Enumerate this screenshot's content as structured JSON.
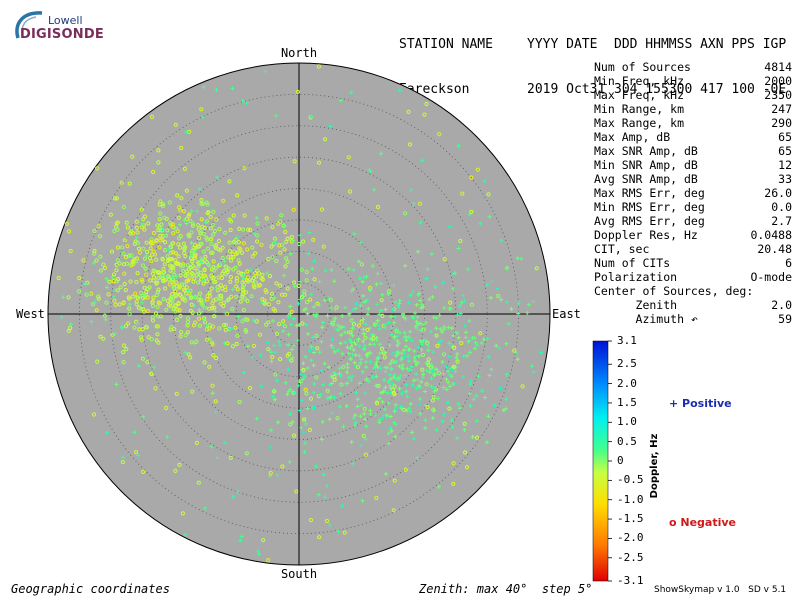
{
  "logo": {
    "line1": "Lowell",
    "line2": "DIGISONDE"
  },
  "header": {
    "labels": [
      "STATION NAME",
      "YYYY DATE",
      "DDD HHMMSS AXN PPS IGP"
    ],
    "values": [
      "Eareckson",
      "2019 Oct31",
      "304 155300 417 100 -0E"
    ]
  },
  "compass": {
    "north": "North",
    "south": "South",
    "east": "East",
    "west": "West"
  },
  "stats": [
    {
      "label": "Num of Sources",
      "value": "4814"
    },
    {
      "label": "Min Freq, kHz",
      "value": "2000"
    },
    {
      "label": "Max Freq, kHz",
      "value": "2350"
    },
    {
      "label": "Min Range, km",
      "value": "247"
    },
    {
      "label": "Max Range, km",
      "value": "290"
    },
    {
      "label": "Max Amp, dB",
      "value": "65"
    },
    {
      "label": "Max SNR Amp, dB",
      "value": "65"
    },
    {
      "label": "Min SNR Amp, dB",
      "value": "12"
    },
    {
      "label": "Avg SNR Amp, dB",
      "value": "33"
    },
    {
      "label": "Max RMS Err, deg",
      "value": "26.0"
    },
    {
      "label": "Min RMS Err, deg",
      "value": "0.0"
    },
    {
      "label": "Avg RMS Err, deg",
      "value": "2.7"
    },
    {
      "label": "Doppler Res, Hz",
      "value": "0.0488"
    },
    {
      "label": "CIT, sec",
      "value": "20.48"
    },
    {
      "label": "Num of CITs",
      "value": "6"
    },
    {
      "label": "Polarization",
      "value": "O-mode"
    },
    {
      "label": "Center of Sources, deg:",
      "value": ""
    },
    {
      "label": "      Zenith",
      "value": "2.0"
    },
    {
      "label": "      Azimuth ↶",
      "value": "59"
    }
  ],
  "colorbar": {
    "axis_label": "Doppler, Hz",
    "ticks": [
      "3.1",
      "2.5",
      "2.0",
      "1.5",
      "1.0",
      "0.5",
      "0",
      "-0.5",
      "-1.0",
      "-1.5",
      "-2.0",
      "-2.5",
      "-3.1"
    ],
    "tick_values": [
      3.1,
      2.5,
      2.0,
      1.5,
      1.0,
      0.5,
      0,
      -0.5,
      -1.0,
      -1.5,
      -2.0,
      -2.5,
      -3.1
    ],
    "min": -3.1,
    "max": 3.1
  },
  "legend": {
    "positive": "+ Positive",
    "negative": "o Negative"
  },
  "footer": {
    "left": "Geographic coordinates",
    "center": "Zenith: max 40°  step 5°",
    "right": "ShowSkymap v 1.0   SD v 5.1"
  },
  "colors": {
    "plot_background": "#a9a9a9",
    "positive_marker": "#1a2fb0",
    "negative_marker": "#d01818"
  },
  "chart_data": {
    "type": "scatter",
    "projection": "polar-skymap",
    "zenith_max_deg": 40,
    "zenith_step_deg": 5,
    "coordinates": "geographic",
    "color_variable": "doppler_hz",
    "num_sources": 4814,
    "clusters": [
      {
        "name": "negative-doppler",
        "marker": "o",
        "center_zenith_deg": 18,
        "center_azimuth_deg": 290,
        "spread_deg": 7,
        "doppler_hz": -0.3,
        "count": 1900
      },
      {
        "name": "positive-doppler",
        "marker": "+",
        "center_zenith_deg": 15,
        "center_azimuth_deg": 115,
        "spread_deg": 8,
        "doppler_hz": 0.2,
        "count": 1700
      },
      {
        "name": "background",
        "marker": "mixed",
        "center_zenith_deg": 0,
        "center_azimuth_deg": 0,
        "spread_deg": 40,
        "doppler_hz": 0.0,
        "count": 700
      }
    ]
  }
}
